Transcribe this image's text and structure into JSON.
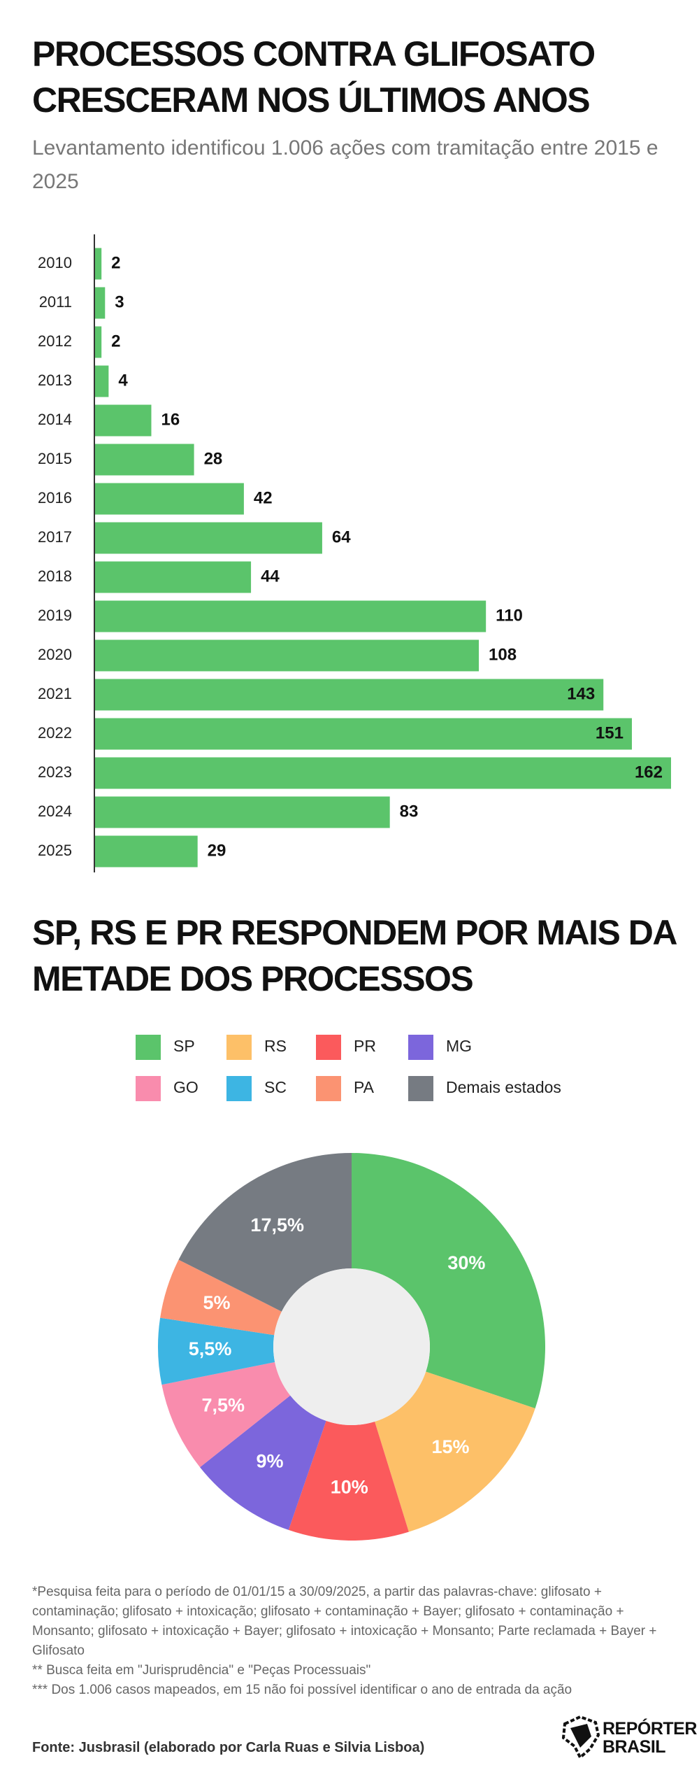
{
  "chart_data": [
    {
      "type": "bar",
      "orientation": "horizontal",
      "title": "PROCESSOS CONTRA GLIFOSATO CRESCERAM NOS ÚLTIMOS ANOS",
      "subtitle": "Levantamento identificou 1.006 ações com tramitação entre 2015 e 2025",
      "categories": [
        "2010",
        "2011",
        "2012",
        "2013",
        "2014",
        "2015",
        "2016",
        "2017",
        "2018",
        "2019",
        "2020",
        "2021",
        "2022",
        "2023",
        "2024",
        "2025"
      ],
      "values": [
        2,
        3,
        2,
        4,
        16,
        28,
        42,
        64,
        44,
        110,
        108,
        143,
        151,
        162,
        83,
        29
      ],
      "color": "#5bc46b"
    },
    {
      "type": "pie",
      "donut": true,
      "title": "SP, RS E PR RESPONDEM POR MAIS DA METADE DOS PROCESSOS",
      "categories": [
        "SP",
        "RS",
        "PR",
        "MG",
        "GO",
        "SC",
        "PA",
        "Demais estados"
      ],
      "values": [
        30,
        15,
        10,
        9,
        7.5,
        5.5,
        5,
        17.5
      ],
      "value_labels": [
        "30%",
        "15%",
        "10%",
        "9%",
        "7,5%",
        "5,5%",
        "5%",
        "17,5%"
      ],
      "colors": [
        "#5bc46b",
        "#fdc068",
        "#fb5a5c",
        "#7c66dc",
        "#f98cad",
        "#3db5e3",
        "#fb9372",
        "#767b82"
      ]
    }
  ],
  "notes": [
    "*Pesquisa feita para o período de 01/01/15 a 30/09/2025, a partir das palavras-chave: glifosato + contaminação; glifosato + intoxicação; glifosato + contaminação + Bayer; glifosato + contaminação + Monsanto; glifosato + intoxicação + Bayer; glifosato + intoxicação + Monsanto; Parte reclamada + Bayer + Glifosato",
    "** Busca feita em \"Jurisprudência\" e \"Peças Processuais\"",
    "*** Dos 1.006 casos mapeados, em 15 não foi possível identificar o ano de entrada da ação"
  ],
  "source": "Fonte: Jusbrasil (elaborado por Carla Ruas e Silvia Lisboa)",
  "logo": [
    "REPÓRTER",
    "BRASIL"
  ]
}
